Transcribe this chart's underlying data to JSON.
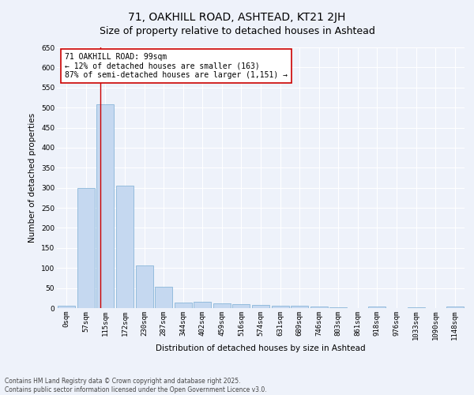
{
  "title": "71, OAKHILL ROAD, ASHTEAD, KT21 2JH",
  "subtitle": "Size of property relative to detached houses in Ashtead",
  "xlabel": "Distribution of detached houses by size in Ashtead",
  "ylabel": "Number of detached properties",
  "bar_color": "#c5d8f0",
  "bar_edge_color": "#7aadd4",
  "background_color": "#eef2fa",
  "grid_color": "#ffffff",
  "bin_labels": [
    "0sqm",
    "57sqm",
    "115sqm",
    "172sqm",
    "230sqm",
    "287sqm",
    "344sqm",
    "402sqm",
    "459sqm",
    "516sqm",
    "574sqm",
    "631sqm",
    "689sqm",
    "746sqm",
    "803sqm",
    "861sqm",
    "918sqm",
    "976sqm",
    "1033sqm",
    "1090sqm",
    "1148sqm"
  ],
  "bar_values": [
    5,
    299,
    509,
    306,
    107,
    53,
    14,
    15,
    12,
    9,
    7,
    5,
    5,
    4,
    1,
    0,
    3,
    0,
    1,
    0,
    3
  ],
  "red_line_x": 1.72,
  "annotation_text": "71 OAKHILL ROAD: 99sqm\n← 12% of detached houses are smaller (163)\n87% of semi-detached houses are larger (1,151) →",
  "annotation_box_color": "#ffffff",
  "annotation_border_color": "#cc0000",
  "red_line_color": "#cc0000",
  "ylim": [
    0,
    650
  ],
  "yticks": [
    0,
    50,
    100,
    150,
    200,
    250,
    300,
    350,
    400,
    450,
    500,
    550,
    600,
    650
  ],
  "footnote": "Contains HM Land Registry data © Crown copyright and database right 2025.\nContains public sector information licensed under the Open Government Licence v3.0.",
  "title_fontsize": 10,
  "subtitle_fontsize": 9,
  "axis_label_fontsize": 7.5,
  "tick_fontsize": 6.5,
  "annotation_fontsize": 7,
  "footnote_fontsize": 5.5
}
